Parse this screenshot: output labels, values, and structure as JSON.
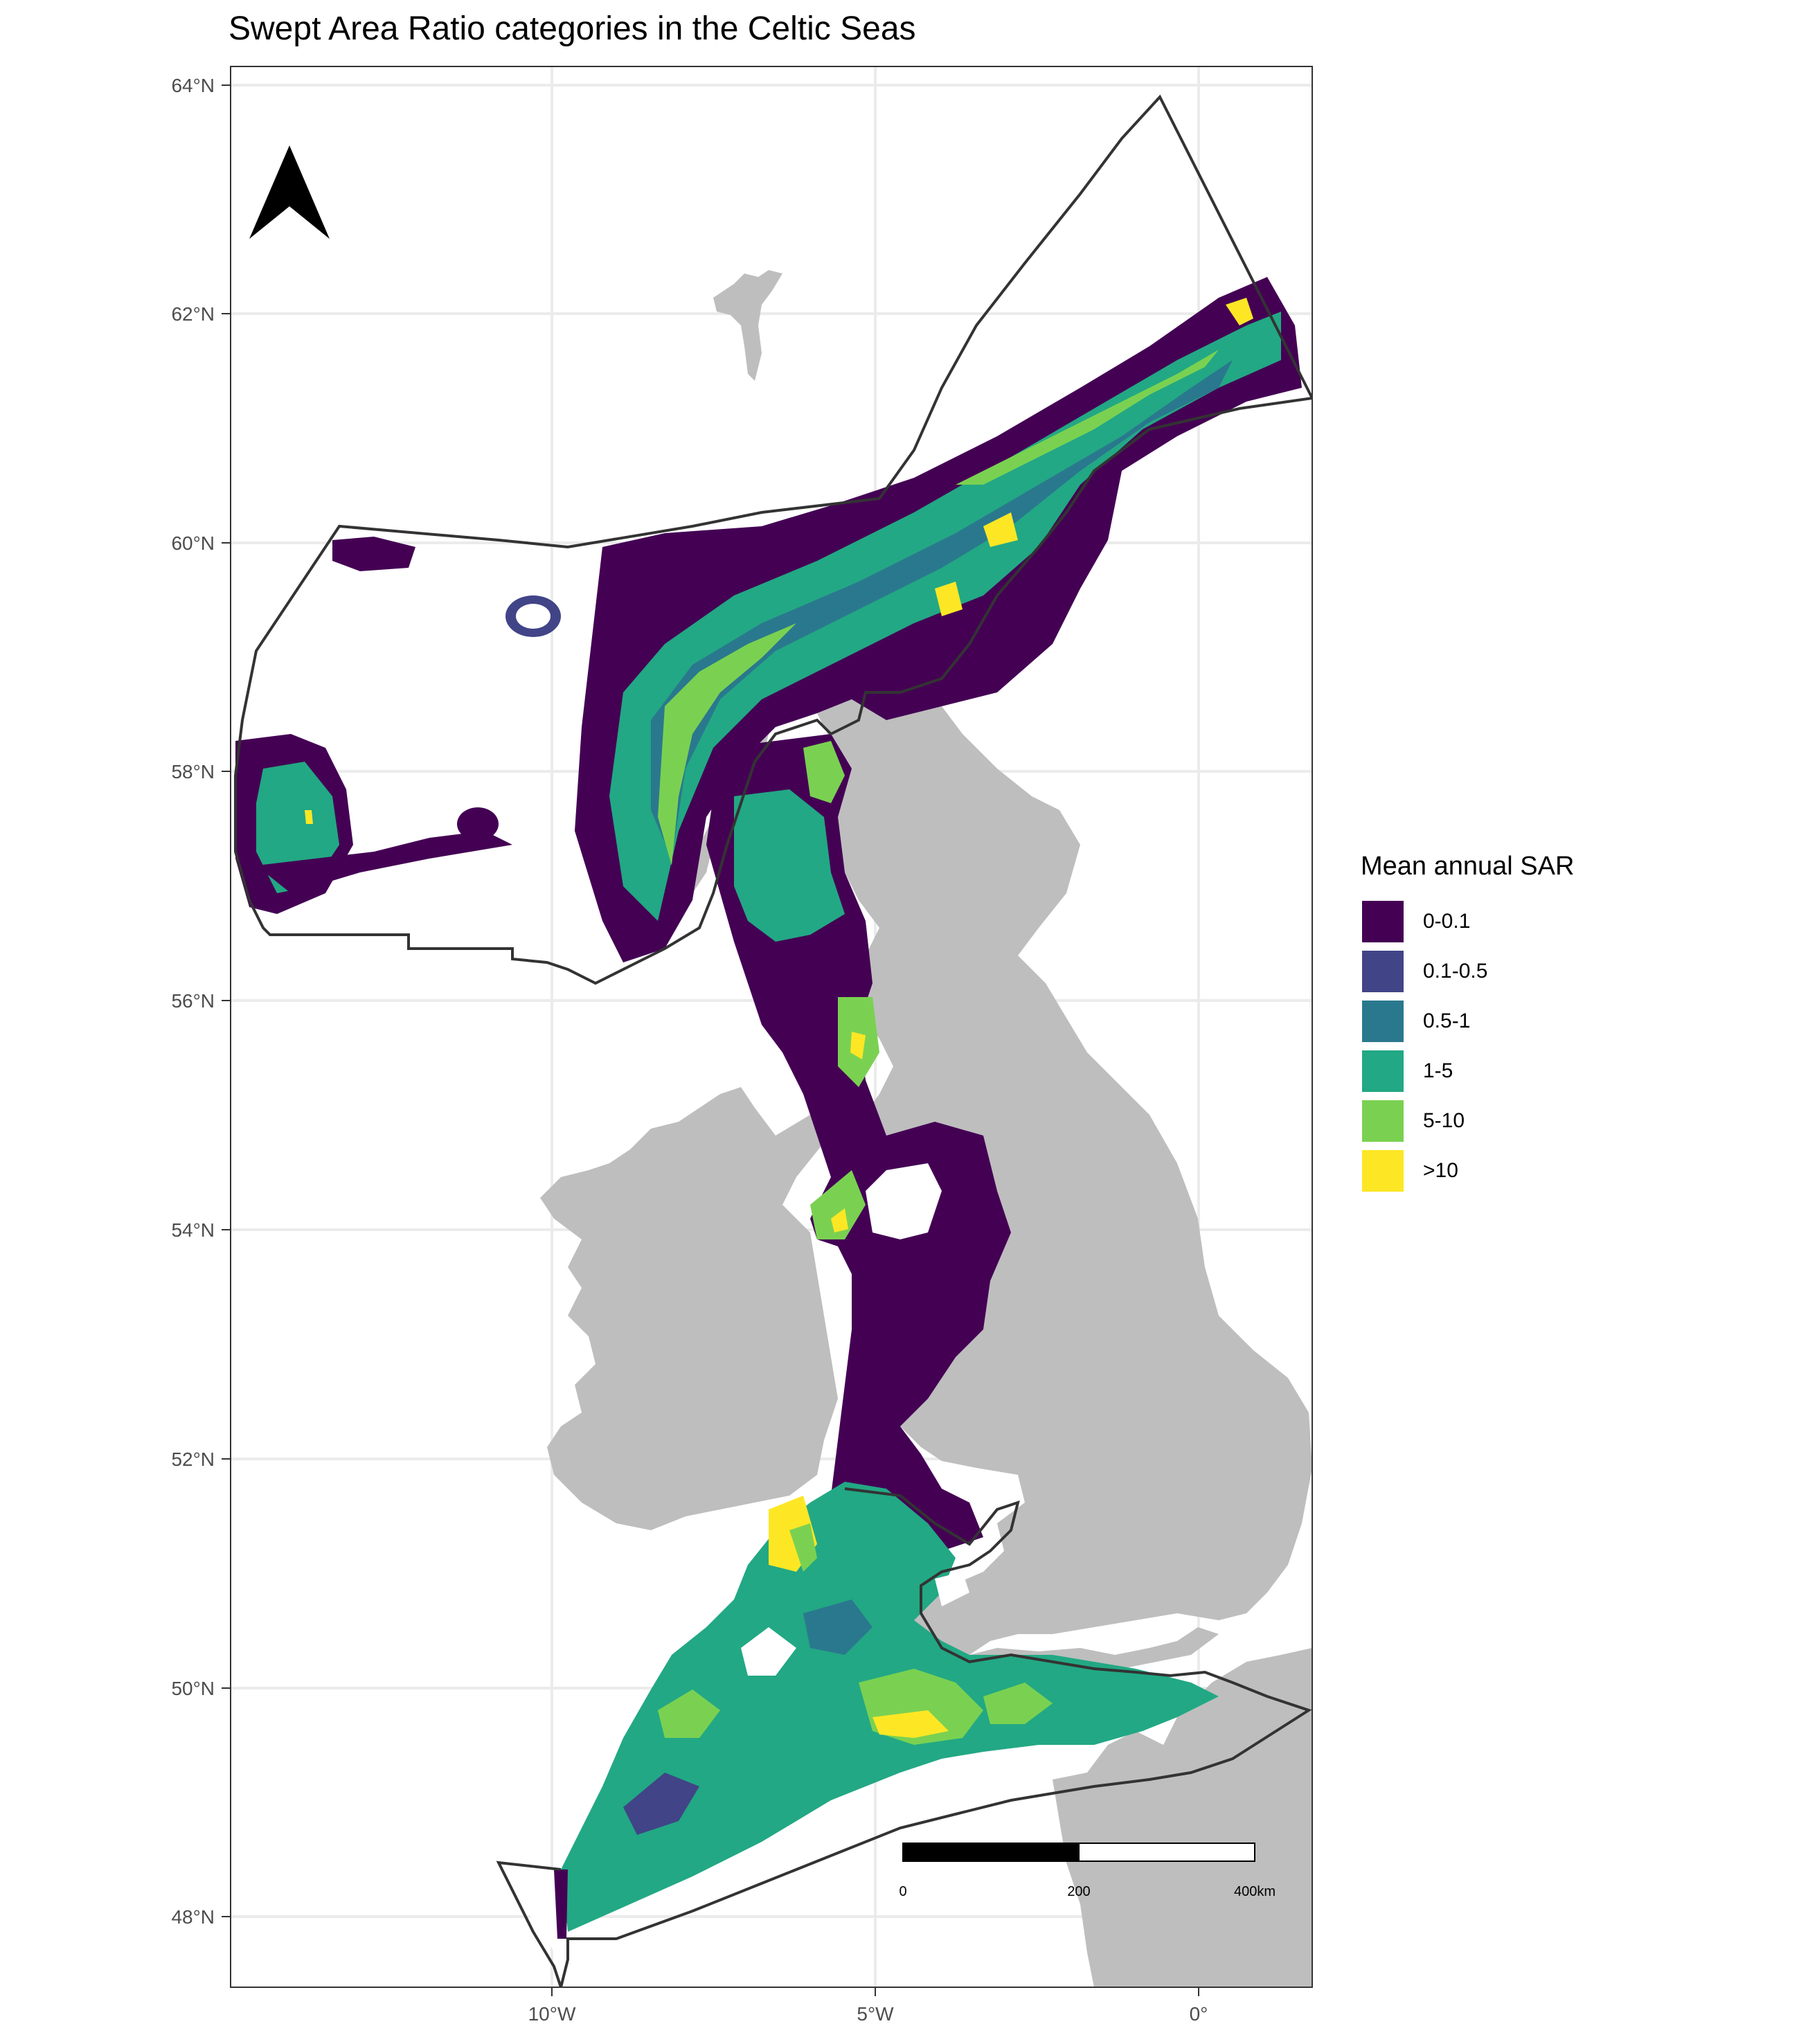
{
  "title": "Swept Area Ratio categories in the Celtic Seas",
  "axes": {
    "lat_ticks": [
      "64°N",
      "62°N",
      "60°N",
      "58°N",
      "56°N",
      "54°N",
      "52°N",
      "50°N",
      "48°N"
    ],
    "lon_ticks": [
      "10°W",
      "5°W",
      "0°"
    ]
  },
  "legend": {
    "title": "Mean annual SAR",
    "items": [
      {
        "label": "0-0.1",
        "color": "#440154"
      },
      {
        "label": "0.1-0.5",
        "color": "#414487"
      },
      {
        "label": "0.5-1",
        "color": "#2a788e"
      },
      {
        "label": "1-5",
        "color": "#22a884"
      },
      {
        "label": "5-10",
        "color": "#7ad151"
      },
      {
        "label": ">10",
        "color": "#fde725"
      }
    ]
  },
  "scale_bar": {
    "labels": [
      "0",
      "200",
      "400km"
    ]
  },
  "north_arrow": {
    "icon": "north-arrow-icon"
  },
  "colors": {
    "land": "#bebebe",
    "grid": "#ebebeb",
    "boundary": "#333333"
  }
}
